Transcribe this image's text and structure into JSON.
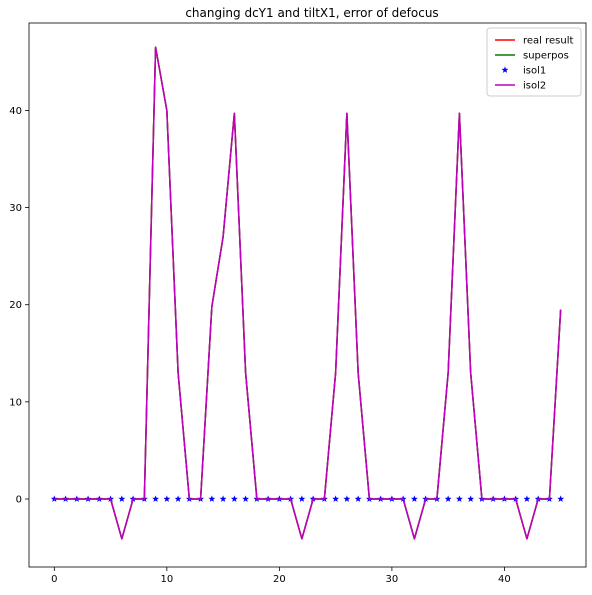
{
  "chart_data": {
    "type": "line",
    "title": "changing dcY1 and tiltX1, error of defocus",
    "xlabel": "",
    "ylabel": "",
    "xlim": [
      -2.25,
      47.25
    ],
    "ylim": [
      -7.0,
      49.0
    ],
    "xticks": [
      0,
      10,
      20,
      30,
      40
    ],
    "yticks": [
      0,
      10,
      20,
      30,
      40
    ],
    "grid": false,
    "legend_position": "top-right",
    "x": [
      0,
      1,
      2,
      3,
      4,
      5,
      6,
      7,
      8,
      9,
      10,
      11,
      12,
      13,
      14,
      15,
      16,
      17,
      18,
      19,
      20,
      21,
      22,
      23,
      24,
      25,
      26,
      27,
      28,
      29,
      30,
      31,
      32,
      33,
      34,
      35,
      36,
      37,
      38,
      39,
      40,
      41,
      42,
      43,
      44,
      45
    ],
    "series": [
      {
        "name": "real result",
        "style": "line",
        "color": "#ff0000",
        "values": [
          0,
          0,
          0,
          0,
          0,
          0,
          -4.1,
          0,
          0,
          46.5,
          40,
          13,
          0,
          0,
          19.8,
          27,
          39.7,
          13,
          0,
          0,
          0,
          0,
          -4.1,
          0,
          0,
          13,
          39.7,
          13,
          0,
          0,
          0,
          0,
          -4.1,
          0,
          0,
          13,
          39.7,
          13,
          0,
          0,
          0,
          0,
          -4.1,
          0,
          0,
          19.5
        ]
      },
      {
        "name": "superpos",
        "style": "line",
        "color": "#008000",
        "values": [
          0,
          0,
          0,
          0,
          0,
          0,
          -4.1,
          0,
          0,
          46.5,
          40,
          13,
          0,
          0,
          19.8,
          27,
          39.7,
          13,
          0,
          0,
          0,
          0,
          -4.1,
          0,
          0,
          13,
          39.7,
          13,
          0,
          0,
          0,
          0,
          -4.1,
          0,
          0,
          13,
          39.7,
          13,
          0,
          0,
          0,
          0,
          -4.1,
          0,
          0,
          19.5
        ]
      },
      {
        "name": "isol1",
        "style": "star",
        "color": "#0000ff",
        "values": [
          0,
          0,
          0,
          0,
          0,
          0,
          0,
          0,
          0,
          0,
          0,
          0,
          0,
          0,
          0,
          0,
          0,
          0,
          0,
          0,
          0,
          0,
          0,
          0,
          0,
          0,
          0,
          0,
          0,
          0,
          0,
          0,
          0,
          0,
          0,
          0,
          0,
          0,
          0,
          0,
          0,
          0,
          0,
          0,
          0,
          0
        ]
      },
      {
        "name": "isol2",
        "style": "line",
        "color": "#bf00bf",
        "values": [
          0,
          0,
          0,
          0,
          0,
          0,
          -4.1,
          0,
          0,
          46.5,
          40,
          13,
          0,
          0,
          19.8,
          27,
          39.7,
          13,
          0,
          0,
          0,
          0,
          -4.1,
          0,
          0,
          13,
          39.7,
          13,
          0,
          0,
          0,
          0,
          -4.1,
          0,
          0,
          13,
          39.7,
          13,
          0,
          0,
          0,
          0,
          -4.1,
          0,
          0,
          19.5
        ]
      }
    ]
  }
}
